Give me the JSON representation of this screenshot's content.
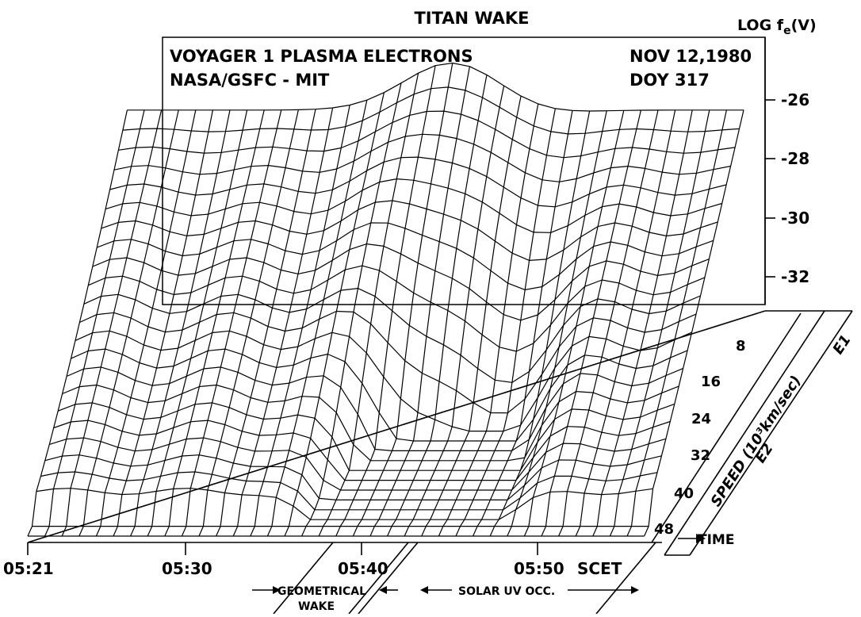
{
  "chart_data": {
    "type": "surface",
    "title": "TITAN WAKE",
    "annotation_left": [
      "VOYAGER 1 PLASMA ELECTRONS",
      "NASA/GSFC - MIT"
    ],
    "annotation_right": [
      "NOV 12,1980",
      "DOY 317"
    ],
    "zlabel": "LOG f_e(V)",
    "zlabel_main": "LOG f",
    "zlabel_sub": "e",
    "zlabel_tail": "(V)",
    "z_ticks": [
      "-26",
      "-28",
      "-30",
      "-32"
    ],
    "z_tick_values": [
      -26,
      -28,
      -30,
      -32
    ],
    "zlim": [
      -33.2,
      -24.4
    ],
    "xlabel": "TIME",
    "x_ticks": [
      "05:21",
      "05:30",
      "05:40",
      "05:50"
    ],
    "x_tick_values": [
      0,
      9,
      19,
      29
    ],
    "x_scet_label": "SCET",
    "xlim": [
      0,
      36
    ],
    "ylabel": "SPEED (10³km/sec)",
    "y_ticks": [
      "8",
      "16",
      "24",
      "32",
      "40",
      "48"
    ],
    "y_tick_values": [
      8,
      16,
      24,
      32,
      40,
      48
    ],
    "ylim": [
      3,
      49
    ],
    "channel_labels": [
      "E1",
      "E2"
    ],
    "wake_label_lines": [
      "GEOMETRICAL",
      "WAKE"
    ],
    "solar_label": "SOLAR UV OCC.",
    "grid": false
  }
}
